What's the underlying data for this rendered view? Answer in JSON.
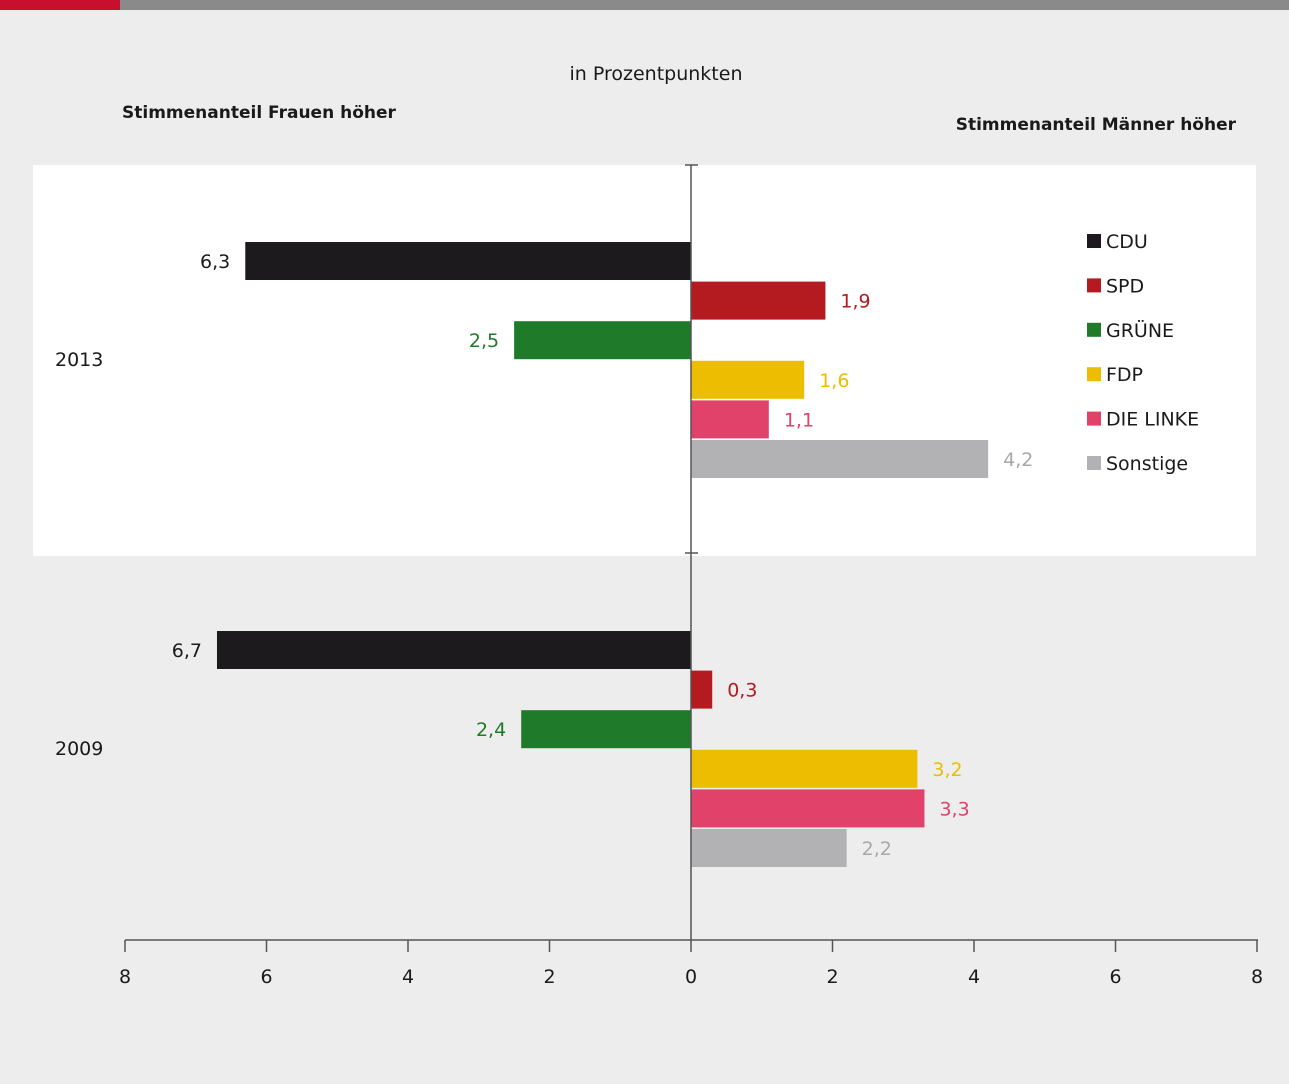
{
  "chart_data": {
    "type": "bar",
    "orientation": "horizontal",
    "subtitle": "in Prozentpunkten",
    "left_label": "Stimmenanteil Frauen höher",
    "right_label": "Stimmenanteil Männer höher",
    "groups": [
      "2013",
      "2009"
    ],
    "xlim": [
      -8,
      8
    ],
    "x_ticks": [
      {
        "value": -8,
        "label": "8"
      },
      {
        "value": -6,
        "label": "6"
      },
      {
        "value": -4,
        "label": "4"
      },
      {
        "value": -2,
        "label": "2"
      },
      {
        "value": 0,
        "label": "0"
      },
      {
        "value": 2,
        "label": "2"
      },
      {
        "value": 4,
        "label": "4"
      },
      {
        "value": 6,
        "label": "6"
      },
      {
        "value": 8,
        "label": "8"
      }
    ],
    "series": [
      {
        "name": "CDU",
        "color": "#1c1a1d",
        "label_color": "#1c1a1d",
        "values": [
          -6.3,
          -6.7
        ],
        "labels": [
          "6,3",
          "6,7"
        ]
      },
      {
        "name": "SPD",
        "color": "#b31b20",
        "label_color": "#b31b20",
        "values": [
          1.9,
          0.3
        ],
        "labels": [
          "1,9",
          "0,3"
        ]
      },
      {
        "name": "GRÜNE",
        "color": "#1f7a2a",
        "label_color": "#1f7a2a",
        "values": [
          -2.5,
          -2.4
        ],
        "labels": [
          "2,5",
          "2,4"
        ]
      },
      {
        "name": "FDP",
        "color": "#ecbd00",
        "label_color": "#ecbd00",
        "values": [
          1.6,
          3.2
        ],
        "labels": [
          "1,6",
          "3,2"
        ]
      },
      {
        "name": "DIE LINKE",
        "color": "#e0426a",
        "label_color": "#e0426a",
        "values": [
          1.1,
          3.3
        ],
        "labels": [
          "1,1",
          "3,3"
        ]
      },
      {
        "name": "Sonstige",
        "color": "#b2b2b4",
        "label_color": "#a8a8aa",
        "values": [
          4.2,
          2.2
        ],
        "labels": [
          "4,2",
          "2,2"
        ]
      }
    ],
    "legend": {
      "placement": "right"
    },
    "grid": false
  },
  "colors": {
    "header_accent": "#c8102e",
    "header_bar": "#8a8a8a",
    "background": "#ededed",
    "highlight_panel": "#ffffff",
    "axis": "#555555"
  }
}
